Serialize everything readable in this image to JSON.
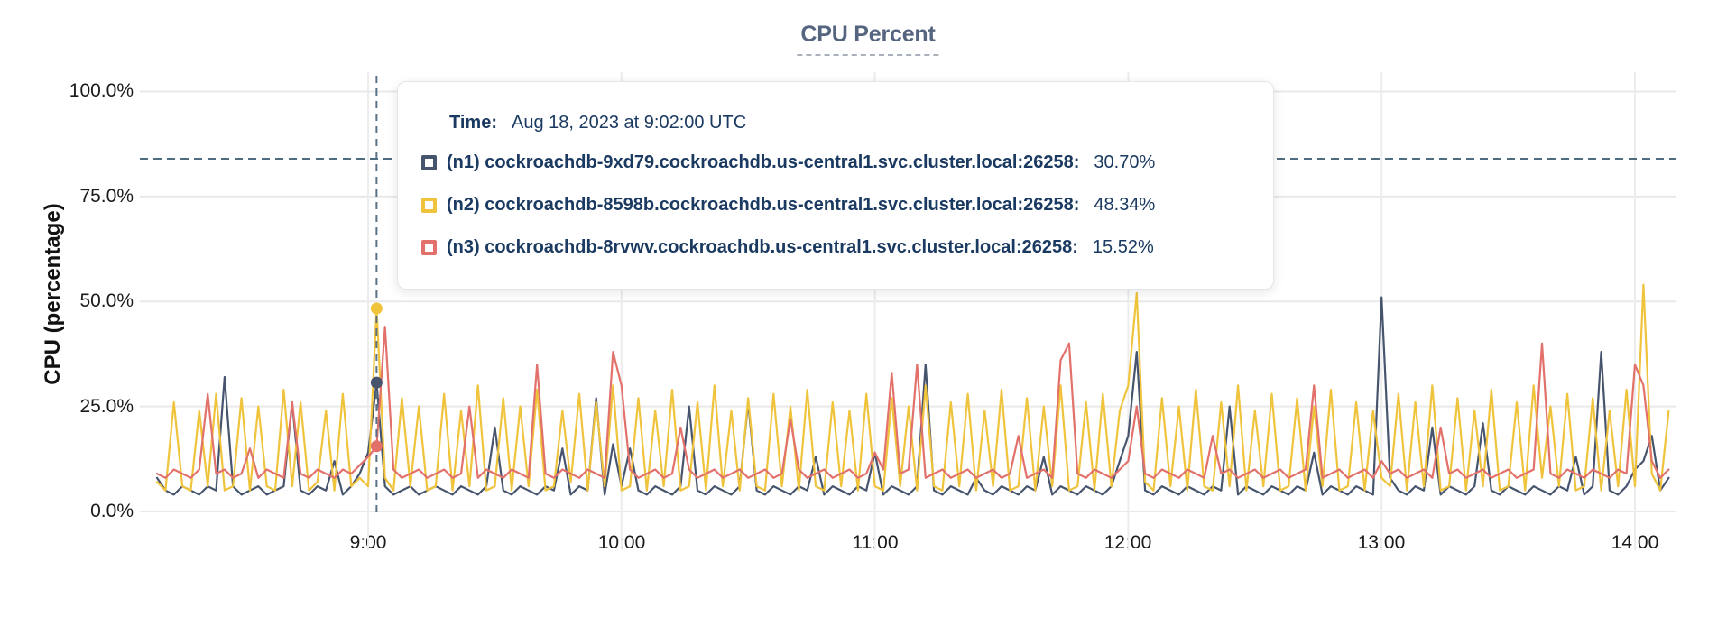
{
  "title": "CPU Percent",
  "tooltip": {
    "time_label": "Time:",
    "time_value": "Aug 18, 2023 at 9:02:00 UTC",
    "series": [
      {
        "name": "(n1) cockroachdb-9xd79.cockroachdb.us-central1.svc.cluster.local:26258:",
        "value": "30.70%",
        "color": "#46546d"
      },
      {
        "name": "(n2) cockroachdb-8598b.cockroachdb.us-central1.svc.cluster.local:26258:",
        "value": "48.34%",
        "color": "#f0c33c"
      },
      {
        "name": "(n3) cockroachdb-8rvwv.cockroachdb.us-central1.svc.cluster.local:26258:",
        "value": "15.52%",
        "color": "#e2716b"
      }
    ]
  },
  "chart_data": {
    "type": "line",
    "title": "CPU Percent",
    "ylabel": "CPU (percentage)",
    "ylim": [
      0,
      100
    ],
    "grid": true,
    "y_ticks": [
      "100.0%",
      "75.0%",
      "50.0%",
      "25.0%",
      "0.0%"
    ],
    "y_tick_values": [
      100,
      75,
      50,
      25,
      0
    ],
    "x_ticks": [
      "9:00",
      "10:00",
      "11:00",
      "12:00",
      "13:00",
      "14:00"
    ],
    "x_start_time": "8:10",
    "x_end_time": "14:08",
    "x_step_minutes": 2,
    "threshold_percent": 84,
    "hover": {
      "index": 26,
      "time": "9:02:00 UTC",
      "values": [
        30.7,
        48.34,
        15.52
      ]
    },
    "series": [
      {
        "name": "n1",
        "color": "#46546d",
        "values": [
          8,
          5,
          4,
          6,
          5,
          4,
          6,
          5,
          32,
          6,
          4,
          5,
          6,
          4,
          5,
          6,
          26,
          5,
          4,
          6,
          5,
          12,
          4,
          6,
          9,
          14,
          30.7,
          6,
          4,
          5,
          6,
          4,
          5,
          6,
          5,
          4,
          6,
          5,
          4,
          6,
          20,
          5,
          4,
          6,
          5,
          4,
          6,
          5,
          15,
          4,
          6,
          5,
          27,
          4,
          16,
          6,
          15,
          5,
          4,
          6,
          5,
          4,
          6,
          25,
          5,
          4,
          6,
          5,
          4,
          6,
          26,
          5,
          4,
          6,
          5,
          4,
          6,
          5,
          13,
          4,
          6,
          5,
          4,
          6,
          5,
          14,
          4,
          6,
          5,
          4,
          6,
          35,
          5,
          4,
          6,
          5,
          4,
          8,
          5,
          4,
          6,
          5,
          4,
          6,
          5,
          13,
          4,
          6,
          5,
          4,
          6,
          5,
          4,
          6,
          12,
          18,
          38,
          5,
          4,
          6,
          5,
          4,
          6,
          5,
          4,
          6,
          5,
          25,
          4,
          6,
          5,
          4,
          6,
          5,
          4,
          6,
          5,
          14,
          4,
          6,
          5,
          4,
          6,
          5,
          4,
          51,
          8,
          5,
          4,
          6,
          5,
          20,
          4,
          6,
          5,
          4,
          6,
          21,
          5,
          4,
          6,
          5,
          4,
          6,
          5,
          4,
          6,
          5,
          13,
          4,
          6,
          38,
          5,
          4,
          6,
          10,
          12,
          18,
          5,
          8
        ]
      },
      {
        "name": "n2",
        "color": "#f0c33c",
        "values": [
          7,
          5,
          26,
          6,
          5,
          24,
          6,
          28,
          5,
          6,
          27,
          5,
          25,
          6,
          5,
          29,
          6,
          26,
          5,
          7,
          24,
          5,
          28,
          6,
          8,
          6,
          48.3,
          8,
          5,
          27,
          6,
          25,
          5,
          6,
          28,
          5,
          24,
          6,
          30,
          5,
          6,
          27,
          5,
          25,
          6,
          29,
          5,
          6,
          24,
          7,
          28,
          5,
          26,
          6,
          30,
          5,
          6,
          27,
          5,
          24,
          6,
          29,
          5,
          6,
          26,
          5,
          30,
          6,
          24,
          5,
          27,
          6,
          5,
          28,
          6,
          25,
          5,
          29,
          6,
          5,
          26,
          6,
          24,
          5,
          28,
          6,
          5,
          27,
          6,
          25,
          5,
          30,
          6,
          5,
          26,
          6,
          28,
          5,
          24,
          6,
          29,
          5,
          6,
          27,
          5,
          25,
          6,
          30,
          5,
          6,
          26,
          5,
          28,
          6,
          24,
          30,
          52,
          7,
          5,
          27,
          6,
          25,
          5,
          29,
          6,
          5,
          26,
          6,
          30,
          5,
          24,
          6,
          28,
          5,
          6,
          27,
          5,
          25,
          6,
          29,
          5,
          6,
          26,
          5,
          24,
          8,
          6,
          28,
          5,
          26,
          6,
          30,
          5,
          6,
          27,
          5,
          24,
          6,
          29,
          5,
          6,
          26,
          5,
          30,
          8,
          25,
          6,
          28,
          5,
          6,
          27,
          5,
          24,
          6,
          29,
          6,
          54,
          9,
          5,
          24
        ]
      },
      {
        "name": "n3",
        "color": "#e2716b",
        "values": [
          9,
          8,
          10,
          9,
          8,
          10,
          28,
          9,
          10,
          8,
          9,
          15,
          8,
          10,
          9,
          8,
          26,
          9,
          8,
          10,
          9,
          8,
          10,
          9,
          11,
          13,
          15.5,
          44,
          10,
          8,
          9,
          10,
          8,
          9,
          10,
          8,
          9,
          25,
          8,
          10,
          9,
          8,
          10,
          9,
          8,
          35,
          9,
          8,
          10,
          9,
          8,
          10,
          9,
          8,
          38,
          30,
          10,
          8,
          9,
          10,
          8,
          9,
          20,
          10,
          8,
          9,
          10,
          8,
          9,
          10,
          8,
          9,
          10,
          8,
          9,
          22,
          10,
          8,
          9,
          10,
          8,
          9,
          10,
          8,
          9,
          14,
          10,
          33,
          9,
          10,
          35,
          8,
          9,
          10,
          8,
          9,
          10,
          8,
          9,
          10,
          8,
          9,
          18,
          8,
          9,
          10,
          8,
          36,
          40,
          9,
          8,
          10,
          9,
          8,
          10,
          12,
          25,
          9,
          8,
          10,
          9,
          8,
          10,
          9,
          8,
          18,
          9,
          10,
          8,
          9,
          10,
          8,
          9,
          10,
          8,
          9,
          10,
          30,
          8,
          9,
          10,
          8,
          9,
          10,
          8,
          12,
          9,
          10,
          8,
          9,
          10,
          8,
          20,
          9,
          10,
          8,
          9,
          10,
          8,
          9,
          10,
          8,
          9,
          10,
          40,
          9,
          8,
          10,
          9,
          8,
          10,
          9,
          8,
          10,
          9,
          35,
          30,
          12,
          8,
          10
        ]
      }
    ]
  }
}
